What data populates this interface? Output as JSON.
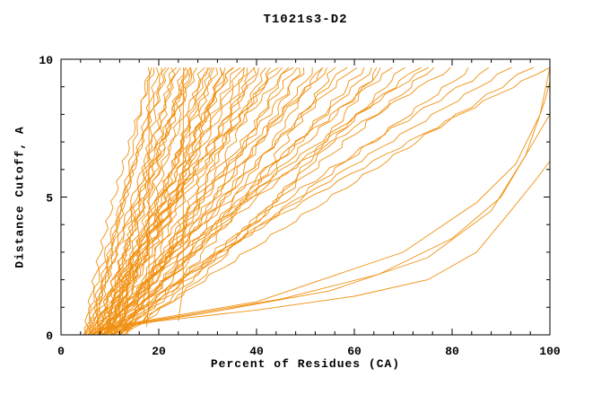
{
  "chart_data": {
    "type": "line",
    "title": "T1021s3-D2",
    "xlabel": "Percent of Residues (CA)",
    "ylabel": "Distance Cutoff, A",
    "xlim": [
      0,
      100
    ],
    "ylim": [
      0,
      10
    ],
    "xticks": [
      0,
      20,
      40,
      60,
      80,
      100
    ],
    "yticks": [
      0,
      5,
      10
    ],
    "x_minor_step": 4,
    "y_minor_step": 1,
    "grid": false,
    "legend": "none",
    "line_color": "#f09010",
    "axis_color": "#000000",
    "background": "#ffffff",
    "description": "GDT-style plot: each orange curve is one model, showing distance cutoff (A) vs percent of CA residues fitting under that cutoff",
    "series": [
      {
        "x0": 5,
        "x1": 18,
        "p": 0.8,
        "j": 0.4
      },
      {
        "x0": 6,
        "x1": 20,
        "p": 1.0,
        "j": 0.5
      },
      {
        "x0": 7,
        "x1": 21,
        "p": 0.7,
        "j": 0.6
      },
      {
        "x0": 5,
        "x1": 22,
        "p": 1.2,
        "j": 0.5
      },
      {
        "x0": 8,
        "x1": 23,
        "p": 0.9,
        "j": 0.7
      },
      {
        "x0": 6,
        "x1": 24,
        "p": 1.1,
        "j": 0.5
      },
      {
        "x0": 9,
        "x1": 25,
        "p": 0.8,
        "j": 0.6
      },
      {
        "x0": 7,
        "x1": 26,
        "p": 1.0,
        "j": 0.7
      },
      {
        "x0": 10,
        "x1": 27,
        "p": 0.9,
        "j": 0.5
      },
      {
        "x0": 6,
        "x1": 28,
        "p": 1.2,
        "j": 0.6
      },
      {
        "x0": 8,
        "x1": 29,
        "p": 0.7,
        "j": 0.7
      },
      {
        "x0": 11,
        "x1": 30,
        "p": 1.0,
        "j": 0.5
      },
      {
        "x0": 7,
        "x1": 31,
        "p": 0.9,
        "j": 0.6
      },
      {
        "x0": 9,
        "x1": 32,
        "p": 1.1,
        "j": 0.7
      },
      {
        "x0": 12,
        "x1": 33,
        "p": 0.8,
        "j": 0.5
      },
      {
        "x0": 8,
        "x1": 34,
        "p": 1.0,
        "j": 0.6
      },
      {
        "x0": 10,
        "x1": 35,
        "p": 1.2,
        "j": 0.7
      },
      {
        "x0": 6,
        "x1": 36,
        "p": 0.9,
        "j": 0.8
      },
      {
        "x0": 9,
        "x1": 37,
        "p": 1.1,
        "j": 0.6
      },
      {
        "x0": 11,
        "x1": 38,
        "p": 0.8,
        "j": 0.7
      },
      {
        "x0": 7,
        "x1": 40,
        "p": 1.0,
        "j": 0.8
      },
      {
        "x0": 10,
        "x1": 41,
        "p": 1.2,
        "j": 0.6
      },
      {
        "x0": 12,
        "x1": 43,
        "p": 0.9,
        "j": 0.7
      },
      {
        "x0": 8,
        "x1": 44,
        "p": 1.1,
        "j": 0.8
      },
      {
        "x0": 11,
        "x1": 46,
        "p": 0.8,
        "j": 0.6
      },
      {
        "x0": 9,
        "x1": 48,
        "p": 1.0,
        "j": 0.7
      },
      {
        "x0": 13,
        "x1": 50,
        "p": 1.2,
        "j": 0.8
      },
      {
        "x0": 7,
        "x1": 52,
        "p": 0.9,
        "j": 0.6
      },
      {
        "x0": 10,
        "x1": 54,
        "p": 1.1,
        "j": 0.7
      },
      {
        "x0": 12,
        "x1": 56,
        "p": 0.8,
        "j": 0.8
      },
      {
        "x0": 8,
        "x1": 58,
        "p": 1.0,
        "j": 0.6
      },
      {
        "x0": 11,
        "x1": 60,
        "p": 1.2,
        "j": 0.7
      },
      {
        "x0": 9,
        "x1": 62,
        "p": 0.9,
        "j": 0.8
      },
      {
        "x0": 12,
        "x1": 64,
        "p": 1.1,
        "j": 0.6
      },
      {
        "x0": 10,
        "x1": 66,
        "p": 1.0,
        "j": 0.7
      },
      {
        "x0": 8,
        "x1": 68,
        "p": 1.2,
        "j": 0.8
      },
      {
        "x0": 13,
        "x1": 70,
        "p": 0.9,
        "j": 0.6
      },
      {
        "x0": 10,
        "x1": 73,
        "p": 1.1,
        "j": 0.7
      },
      {
        "x0": 12,
        "x1": 76,
        "p": 1.0,
        "j": 0.8
      },
      {
        "x0": 9,
        "x1": 80,
        "p": 1.3,
        "j": 0.6
      },
      {
        "x0": 11,
        "x1": 84,
        "p": 1.0,
        "j": 0.7
      },
      {
        "x0": 13,
        "x1": 88,
        "p": 1.2,
        "j": 0.8
      },
      {
        "x0": 10,
        "x1": 92,
        "p": 1.1,
        "j": 0.6
      },
      {
        "x0": 12,
        "x1": 96,
        "p": 1.0,
        "j": 0.7
      },
      {
        "x0": 11,
        "x1": 100,
        "p": 1.2,
        "j": 0.6
      },
      {
        "x0": 5,
        "x1": 19,
        "p": 1.3,
        "j": 0.5
      },
      {
        "x0": 6,
        "x1": 23,
        "p": 0.6,
        "j": 0.6
      },
      {
        "x0": 7,
        "x1": 27,
        "p": 1.3,
        "j": 0.5
      },
      {
        "x0": 8,
        "x1": 31,
        "p": 0.6,
        "j": 0.6
      },
      {
        "x0": 9,
        "x1": 35,
        "p": 1.3,
        "j": 0.5
      },
      {
        "x0": 6,
        "x1": 39,
        "p": 0.6,
        "j": 0.7
      },
      {
        "x0": 7,
        "x1": 45,
        "p": 1.3,
        "j": 0.6
      },
      {
        "x0": 8,
        "x1": 49,
        "p": 0.7,
        "j": 0.7
      },
      {
        "x0": 9,
        "x1": 55,
        "p": 1.3,
        "j": 0.6
      },
      {
        "x0": 10,
        "x1": 65,
        "p": 0.7,
        "j": 0.7
      },
      {
        "x0": 11,
        "x1": 75,
        "p": 1.3,
        "j": 0.6
      },
      {
        "x0": 5,
        "x1": 21,
        "p": 1.0,
        "j": 0.5
      },
      {
        "x0": 6,
        "x1": 26,
        "p": 0.85,
        "j": 0.6
      },
      {
        "x0": 7,
        "x1": 30,
        "p": 1.15,
        "j": 0.5
      },
      {
        "x0": 8,
        "x1": 33,
        "p": 0.75,
        "j": 0.6
      },
      {
        "x0": 9,
        "x1": 38,
        "p": 1.05,
        "j": 0.6
      },
      {
        "x0": 10,
        "x1": 42,
        "p": 0.9,
        "j": 0.6
      },
      {
        "x0": 6,
        "x1": 47,
        "p": 1.25,
        "j": 0.7
      },
      {
        "x0": 11,
        "x1": 53,
        "p": 0.8,
        "j": 0.6
      },
      {
        "points": [
          [
            17.5,
            0.3
          ],
          [
            18,
            1.2
          ],
          [
            18,
            9.3
          ],
          [
            18.5,
            9.7
          ]
        ]
      },
      {
        "points": [
          [
            24,
            0.5
          ],
          [
            25,
            1.8
          ],
          [
            25,
            9.5
          ],
          [
            25.5,
            9.7
          ]
        ]
      },
      {
        "points": [
          [
            6,
            0.1
          ],
          [
            20,
            0.5
          ],
          [
            40,
            0.9
          ],
          [
            60,
            1.4
          ],
          [
            75,
            2.0
          ],
          [
            85,
            3.0
          ],
          [
            92,
            4.5
          ],
          [
            97,
            5.6
          ],
          [
            100,
            6.3
          ]
        ]
      },
      {
        "points": [
          [
            8,
            0.2
          ],
          [
            30,
            0.8
          ],
          [
            55,
            1.6
          ],
          [
            75,
            2.8
          ],
          [
            88,
            4.5
          ],
          [
            95,
            6.5
          ],
          [
            99,
            8.5
          ],
          [
            100,
            9.2
          ]
        ]
      },
      {
        "points": [
          [
            10,
            0.3
          ],
          [
            40,
            1.2
          ],
          [
            70,
            3.0
          ],
          [
            85,
            4.8
          ],
          [
            93,
            6.2
          ],
          [
            98,
            8.0
          ],
          [
            100,
            9.7
          ]
        ]
      },
      {
        "points": [
          [
            7,
            0.2
          ],
          [
            25,
            0.7
          ],
          [
            45,
            1.3
          ],
          [
            65,
            2.2
          ],
          [
            80,
            3.5
          ],
          [
            90,
            5.0
          ],
          [
            96,
            6.8
          ],
          [
            100,
            8.0
          ]
        ]
      }
    ]
  }
}
